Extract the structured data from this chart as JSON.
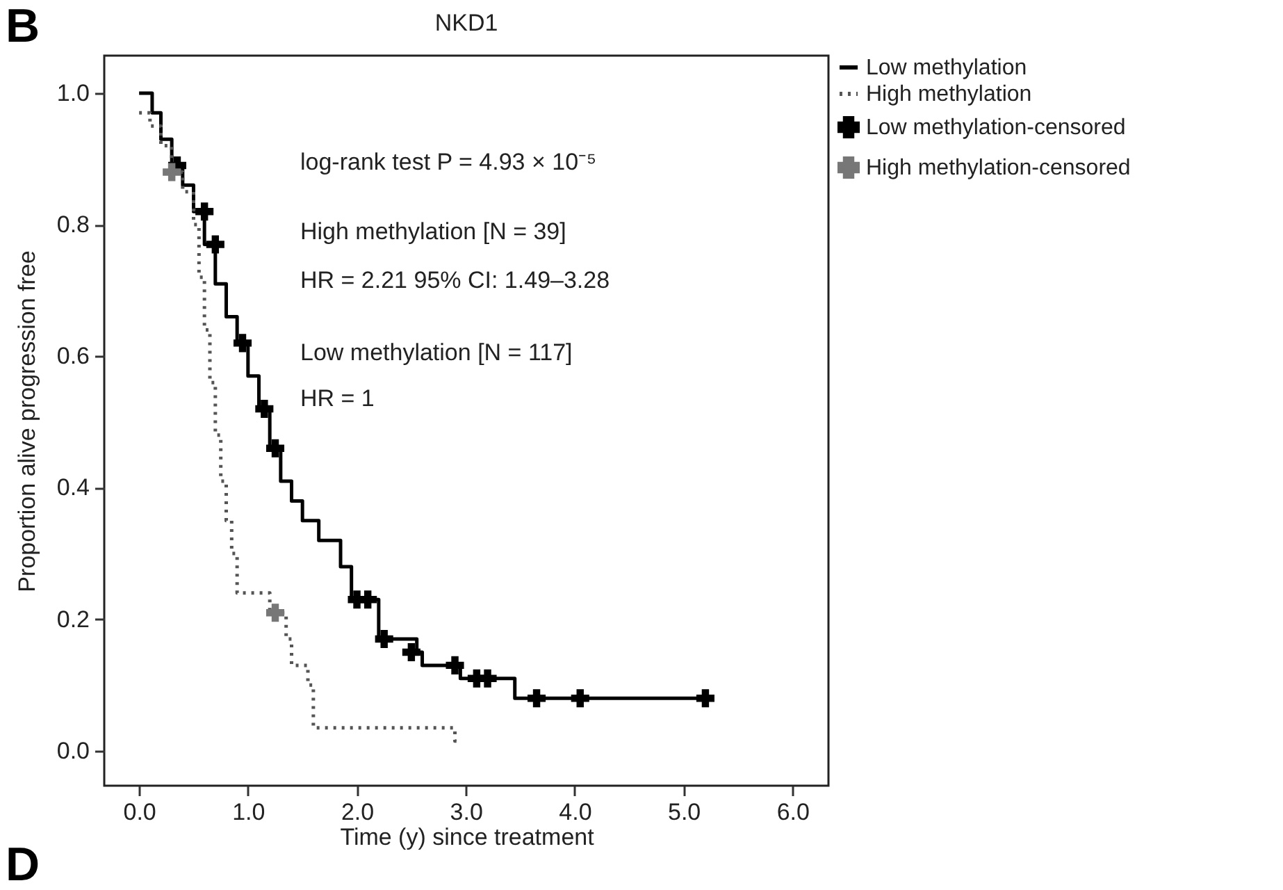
{
  "chart_data": {
    "type": "step",
    "title": "NKD1",
    "xlabel": "Time (y) since treatment",
    "ylabel": "Proportion alive progression free",
    "annotations": [
      "B",
      "log-rank test P = 4.93 × 10⁻⁵",
      "High methylation [N = 39]",
      "HR = 2.21 95% CI: 1.49–3.28",
      "Low methylation [N = 117]",
      "HR = 1",
      "D"
    ],
    "series": [
      {
        "name": "Low methylation",
        "color": "#000000",
        "line_style": "solid",
        "x": [
          0,
          0.12,
          0.2,
          0.3,
          0.4,
          0.5,
          0.6,
          0.7,
          0.8,
          0.9,
          1.0,
          1.1,
          1.2,
          1.3,
          1.4,
          1.5,
          1.65,
          1.85,
          1.95,
          2.2,
          2.55,
          2.6,
          2.95,
          3.45,
          5.2
        ],
        "values": [
          1.0,
          0.97,
          0.93,
          0.89,
          0.86,
          0.82,
          0.77,
          0.71,
          0.66,
          0.62,
          0.57,
          0.52,
          0.46,
          0.41,
          0.38,
          0.35,
          0.32,
          0.28,
          0.23,
          0.17,
          0.15,
          0.13,
          0.11,
          0.08,
          0.08
        ]
      },
      {
        "name": "High methylation",
        "color": "#555555",
        "line_style": "dotted",
        "x": [
          0,
          0.1,
          0.2,
          0.3,
          0.4,
          0.5,
          0.55,
          0.6,
          0.65,
          0.7,
          0.75,
          0.8,
          0.85,
          0.9,
          1.2,
          1.35,
          1.4,
          1.55,
          1.6,
          2.9,
          2.95
        ],
        "values": [
          0.97,
          0.95,
          0.92,
          0.88,
          0.85,
          0.8,
          0.72,
          0.64,
          0.56,
          0.48,
          0.41,
          0.35,
          0.3,
          0.24,
          0.21,
          0.17,
          0.13,
          0.1,
          0.035,
          0.015,
          0.015
        ]
      },
      {
        "name": "Low methylation-censored",
        "type": "scatter",
        "marker": "cross",
        "color": "#000000",
        "x": [
          0.35,
          0.6,
          0.7,
          0.95,
          1.15,
          1.25,
          2.0,
          2.1,
          2.25,
          2.5,
          2.9,
          3.1,
          3.2,
          3.65,
          4.05,
          5.2
        ],
        "values": [
          0.89,
          0.82,
          0.77,
          0.62,
          0.52,
          0.46,
          0.23,
          0.23,
          0.17,
          0.15,
          0.13,
          0.11,
          0.11,
          0.08,
          0.08,
          0.08
        ]
      },
      {
        "name": "High methylation-censored",
        "type": "scatter",
        "marker": "cross",
        "color": "#777777",
        "x": [
          0.3,
          1.25
        ],
        "values": [
          0.88,
          0.21
        ]
      }
    ],
    "xlim": [
      -0.32,
      6.33
    ],
    "ylim": [
      -0.053,
      1.057
    ],
    "xticks": [
      {
        "value": 0,
        "label": "0.0"
      },
      {
        "value": 1,
        "label": "1.0"
      },
      {
        "value": 2,
        "label": "2.0"
      },
      {
        "value": 3,
        "label": "3.0"
      },
      {
        "value": 4,
        "label": "4.0"
      },
      {
        "value": 5,
        "label": "5.0"
      },
      {
        "value": 6,
        "label": "6.0"
      }
    ],
    "yticks": [
      {
        "value": 0,
        "label": "0.0"
      },
      {
        "value": 0.2,
        "label": "0.2"
      },
      {
        "value": 0.4,
        "label": "0.4"
      },
      {
        "value": 0.6,
        "label": "0.6"
      },
      {
        "value": 0.8,
        "label": "0.8"
      },
      {
        "value": 1,
        "label": "1.0"
      }
    ],
    "grid": false,
    "legend": "top right"
  }
}
